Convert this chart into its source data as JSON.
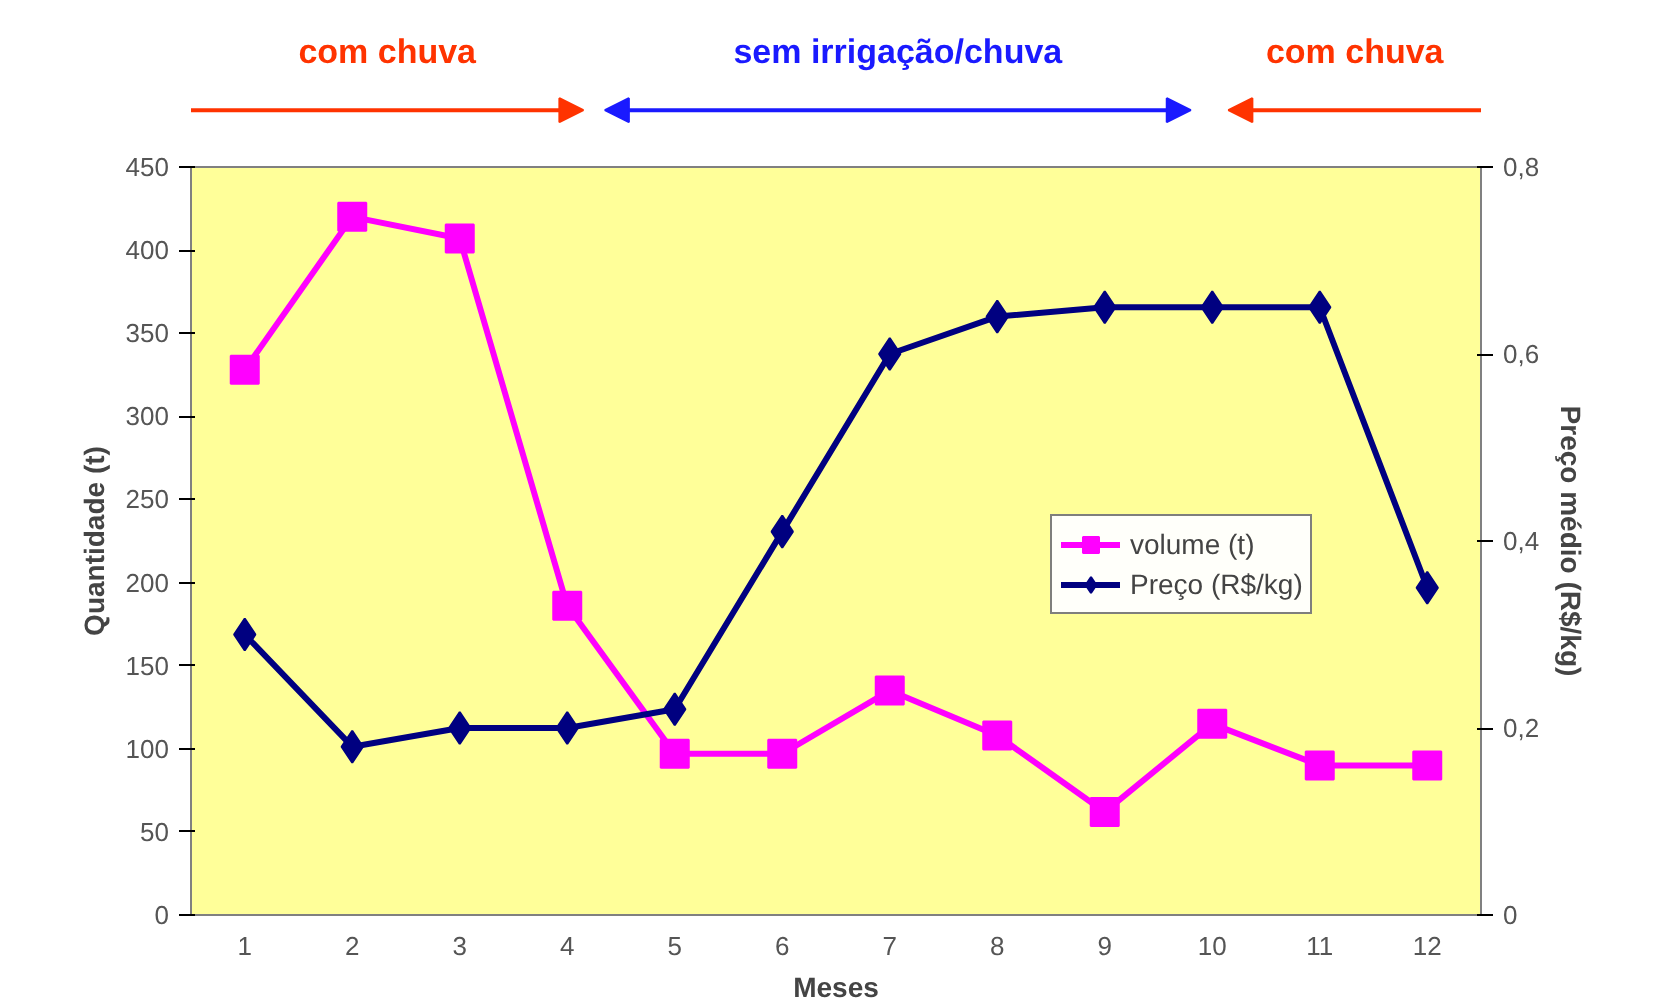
{
  "chart_data": {
    "type": "line",
    "xlabel": "Meses",
    "ylabel": "Quantidade (t)",
    "y2label": "Preço médio (R$/kg)",
    "annotations": [
      "com chuva",
      "sem irrigação/chuva",
      "com chuva"
    ],
    "x": [
      1,
      2,
      3,
      4,
      5,
      6,
      7,
      8,
      9,
      10,
      11,
      12
    ],
    "xlim": [
      0.5,
      12.5
    ],
    "xticks": [
      1,
      2,
      3,
      4,
      5,
      6,
      7,
      8,
      9,
      10,
      11,
      12
    ],
    "series": [
      {
        "name": "volume (t)",
        "color": "#ff00ff",
        "marker": "square",
        "values": [
          328,
          420,
          407,
          186,
          97,
          97,
          135,
          108,
          62,
          115,
          90,
          90
        ]
      },
      {
        "name": "Preço (R$/kg)",
        "color": "#000080",
        "marker": "diamond",
        "axis": "y2",
        "values": [
          0.3,
          0.18,
          0.2,
          0.2,
          0.22,
          0.41,
          0.6,
          0.64,
          0.65,
          0.65,
          0.65,
          0.35
        ]
      }
    ],
    "ylim": [
      0,
      450
    ],
    "yticks": [
      0,
      50,
      100,
      150,
      200,
      250,
      300,
      350,
      400,
      450
    ],
    "y2lim": [
      0,
      0.8
    ],
    "y2ticks": [
      0,
      {
        "value": 0.2,
        "label": "0,2"
      },
      {
        "value": 0.4,
        "label": "0,4"
      },
      {
        "value": 0.6,
        "label": "0,6"
      },
      {
        "value": 0.8,
        "label": "0,8"
      }
    ],
    "grid": false,
    "legend": "right"
  }
}
